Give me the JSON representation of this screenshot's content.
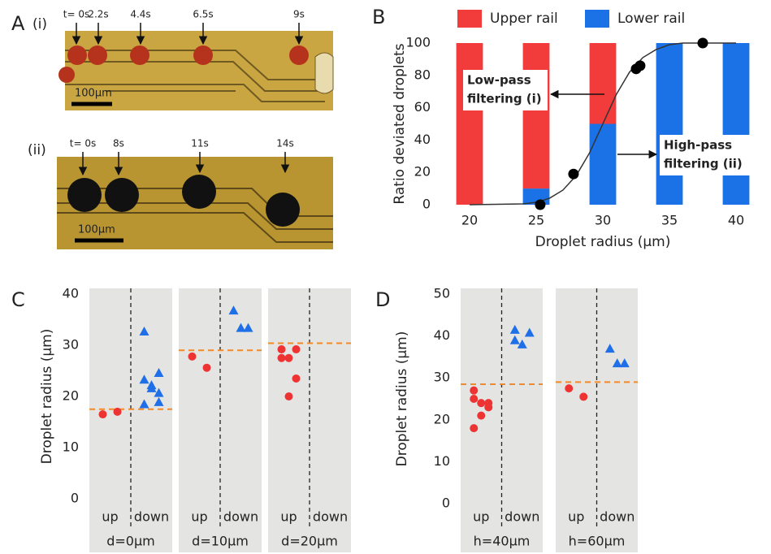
{
  "panel_a": {
    "letter": "A",
    "rows": [
      {
        "label": "(i)",
        "times": [
          "t= 0s",
          "2.2s",
          "4.4s",
          "6.5s",
          "9s"
        ],
        "scale": "100μm"
      },
      {
        "label": "(ii)",
        "times": [
          "t= 0s",
          "8s",
          "11s",
          "14s"
        ],
        "scale": "100μm"
      }
    ]
  },
  "chart_data": [
    {
      "type": "bar",
      "panel": "B",
      "stacked": true,
      "x": [
        20,
        25,
        30,
        35,
        40
      ],
      "series": [
        {
          "name": "Upper rail",
          "color": "#f23b3b",
          "values": [
            100,
            90,
            50,
            0,
            0
          ]
        },
        {
          "name": "Lower rail",
          "color": "#1a72e6",
          "values": [
            0,
            10,
            50,
            100,
            100
          ]
        }
      ],
      "points": {
        "color": "#000000",
        "x": [
          25.3,
          27.8,
          32.5,
          32.8,
          37.5
        ],
        "y": [
          0,
          19,
          84,
          86,
          100
        ]
      },
      "fit": {
        "color": "#333333",
        "x": [
          20,
          24,
          25,
          26,
          27,
          28,
          29,
          30,
          31,
          32,
          33,
          34,
          35,
          36,
          40
        ],
        "y": [
          0,
          0.5,
          1.5,
          4,
          9,
          18,
          32,
          50,
          68,
          82,
          91,
          96,
          99,
          100,
          100
        ]
      },
      "xlabel": "Droplet radius (μm)",
      "ylabel": "Ratio deviated droplets",
      "xlim": [
        17.5,
        42.5
      ],
      "xticks": [
        20,
        25,
        30,
        35,
        40
      ],
      "ylim": [
        0,
        100
      ],
      "yticks": [
        0,
        20,
        40,
        60,
        80,
        100
      ],
      "annotations": [
        {
          "lines": [
            "Low-pass",
            "filtering (i)"
          ]
        },
        {
          "lines": [
            "High-pass",
            "filtering (ii)"
          ]
        }
      ]
    },
    {
      "type": "strip",
      "panel": "C",
      "ylabel": "Droplet radius (μm)",
      "ylim": [
        0,
        40
      ],
      "yticks": [
        0,
        10,
        20,
        30,
        40
      ],
      "threshold_color": "#f08a2c",
      "styles": [
        {
          "color": "#ee3333",
          "marker": "circle"
        },
        {
          "color": "#1f6fe8",
          "marker": "triangle"
        }
      ],
      "groups": [
        {
          "label": "d=0μm",
          "threshold": 17.5,
          "subgroups": [
            {
              "label": "up",
              "values": [
                16.5,
                17.0
              ]
            },
            {
              "label": "down",
              "values": [
                32.7,
                24.6,
                22.2,
                23.3,
                20.7,
                21.6,
                18.5,
                18.9
              ]
            }
          ]
        },
        {
          "label": "d=10μm",
          "threshold": 29.0,
          "subgroups": [
            {
              "label": "up",
              "values": [
                27.8,
                25.6
              ]
            },
            {
              "label": "down",
              "values": [
                36.8,
                33.4,
                33.4
              ]
            }
          ]
        },
        {
          "label": "d=20μm",
          "threshold": 30.4,
          "subgroups": [
            {
              "label": "up",
              "values": [
                29.2,
                29.2,
                27.5,
                27.5,
                23.5,
                20.0
              ]
            },
            {
              "label": "down",
              "values": []
            }
          ]
        }
      ]
    },
    {
      "type": "strip",
      "panel": "D",
      "ylabel": "Droplet radius (μm)",
      "ylim": [
        0,
        50
      ],
      "yticks": [
        0,
        10,
        20,
        30,
        40,
        50
      ],
      "threshold_color": "#f08a2c",
      "styles": [
        {
          "color": "#ee3333",
          "marker": "circle"
        },
        {
          "color": "#1f6fe8",
          "marker": "triangle"
        }
      ],
      "groups": [
        {
          "label": "h=40μm",
          "threshold": 28.5,
          "subgroups": [
            {
              "label": "up",
              "values": [
                27.0,
                24.0,
                24.0,
                25.0,
                23.0,
                21.0,
                18.0
              ]
            },
            {
              "label": "down",
              "values": [
                41.5,
                40.8,
                38.0,
                39.0
              ]
            }
          ]
        },
        {
          "label": "h=60μm",
          "threshold": 29.0,
          "subgroups": [
            {
              "label": "up",
              "values": [
                27.5,
                25.5
              ]
            },
            {
              "label": "down",
              "values": [
                37.0,
                33.5,
                33.5
              ]
            }
          ]
        }
      ]
    }
  ]
}
